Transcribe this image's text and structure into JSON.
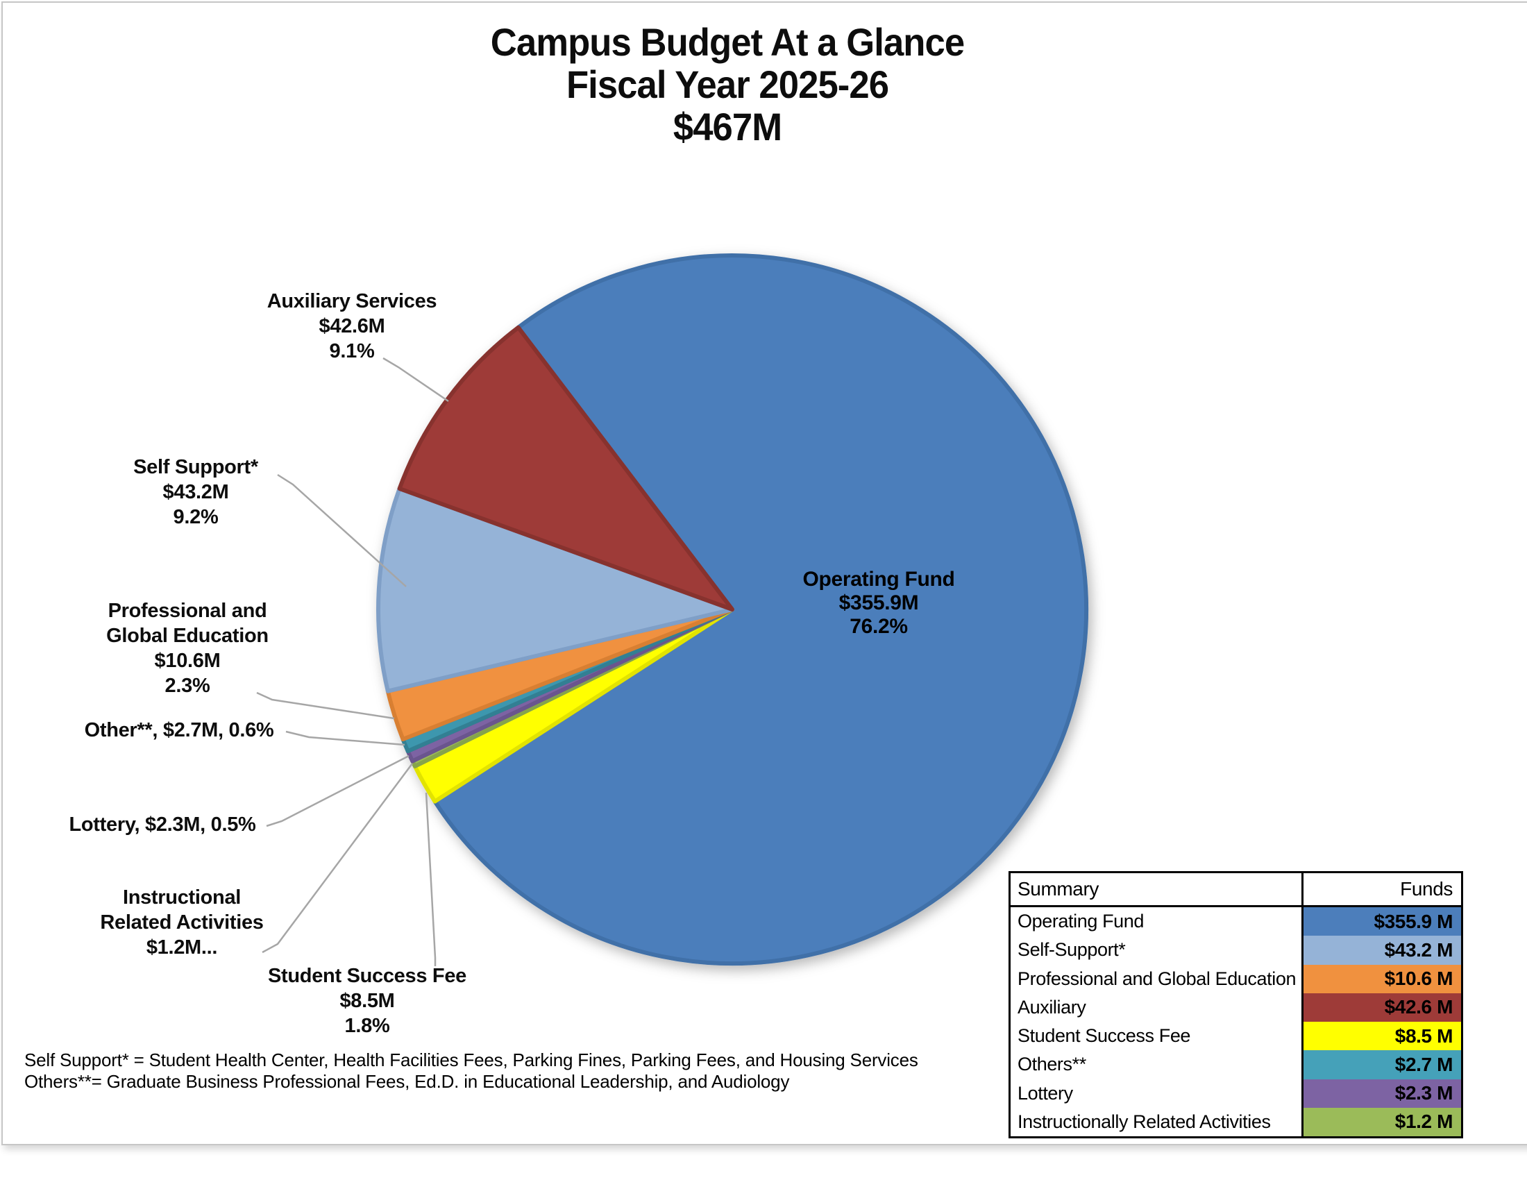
{
  "title": {
    "text": "Campus Budget At a Glance\nFiscal Year 2025-26\n$467M"
  },
  "chart_data": {
    "type": "pie",
    "title": "Campus Budget At a Glance Fiscal Year 2025-26 $467M",
    "total": 467.0,
    "total_label": "$467M",
    "units": "millions USD",
    "start_angle_deg": -37.2,
    "direction": "clockwise",
    "legend_position": "table-bottom-right",
    "slices": [
      {
        "label": "Operating Fund",
        "value": 355.9,
        "percent": "76.2%",
        "color": "#4C7EBB",
        "border": "#3F6FA8"
      },
      {
        "label": "Student Success Fee",
        "value": 8.5,
        "percent": "1.8%",
        "color": "#FFFF00",
        "border": "#E2E300"
      },
      {
        "label": "Instructionally Related Activities",
        "value": 1.2,
        "percent": "",
        "color": "#9BBB59",
        "border": "#86A44C"
      },
      {
        "label": "Lottery",
        "value": 2.3,
        "percent": "0.5%",
        "color": "#7D63A3",
        "border": "#6B548E"
      },
      {
        "label": "Others**",
        "value": 2.7,
        "percent": "0.6%",
        "color": "#3E97AE",
        "border": "#337F93"
      },
      {
        "label": "Professional and Global Education",
        "value": 10.6,
        "percent": "2.3%",
        "color": "#F0913F",
        "border": "#D87F33"
      },
      {
        "label": "Self-Support*",
        "value": 43.2,
        "percent": "9.2%",
        "color": "#95B3D7",
        "border": "#7F9FC7"
      },
      {
        "label": "Auxiliary Services",
        "value": 42.6,
        "percent": "9.1%",
        "color": "#9E3B38",
        "border": "#87322F"
      }
    ]
  },
  "callouts": {
    "operating": {
      "text": "Operating Fund\n$355.9M\n76.2%"
    },
    "auxiliary": {
      "text": "Auxiliary Services\n$42.6M\n9.1%"
    },
    "self_support": {
      "text": "Self Support*\n$43.2M\n9.2%"
    },
    "prof_global": {
      "text": "Professional and\nGlobal Education\n$10.6M\n2.3%"
    },
    "other": {
      "text": "Other**, $2.7M, 0.6%"
    },
    "lottery": {
      "text": "Lottery, $2.3M, 0.5%"
    },
    "ira": {
      "text": "Instructional\nRelated Activities\n$1.2M..."
    },
    "student_success": {
      "text": "Student Success Fee\n$8.5M\n1.8%"
    }
  },
  "legend_table": {
    "header": {
      "summary": "Summary",
      "funds": "Funds"
    },
    "rows": [
      {
        "label": "Operating Fund",
        "value": "$355.9 M",
        "color": "#4C7EBB"
      },
      {
        "label": "Self-Support*",
        "value": "$43.2 M",
        "color": "#95B3D7"
      },
      {
        "label": "Professional and Global Education",
        "value": "$10.6 M",
        "color": "#F0913F"
      },
      {
        "label": "Auxiliary",
        "value": "$42.6 M",
        "color": "#9E3B38"
      },
      {
        "label": "Student Success Fee",
        "value": "$8.5 M",
        "color": "#FFFF00"
      },
      {
        "label": "Others**",
        "value": "$2.7 M",
        "color": "#45A1B9"
      },
      {
        "label": "Lottery",
        "value": "$2.3 M",
        "color": "#7D63A3"
      },
      {
        "label": "Instructionally Related Activities",
        "value": "$1.2 M",
        "color": "#9BBB59"
      }
    ]
  },
  "footnotes": {
    "text": "Self Support* = Student Health Center, Health Facilities Fees, Parking Fines, Parking Fees, and Housing Services\nOthers**= Graduate Business Professional Fees, Ed.D. in Educational Leadership, and Audiology"
  },
  "colors": {
    "leader_line": "#A6A6A6",
    "frame_border": "#C6C6C6",
    "table_border": "#000000"
  }
}
